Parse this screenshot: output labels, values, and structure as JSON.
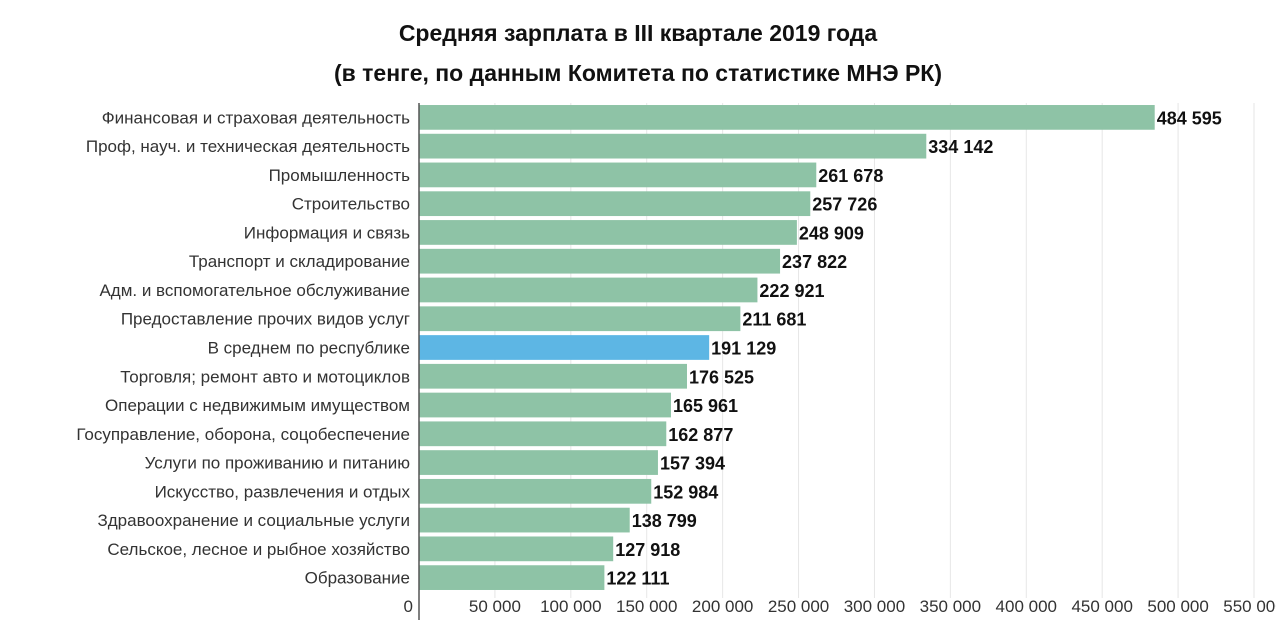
{
  "chart_data": {
    "type": "bar",
    "orientation": "horizontal",
    "title": "Средняя зарплата в III квартале 2019 года",
    "subtitle": "(в тенге, по данным Комитета по статистике МНЭ РК)",
    "categories": [
      "Финансовая и страховая деятельность",
      "Проф, науч. и техническая деятельность",
      "Промышленность",
      "Строительство",
      "Информация и связь",
      "Транспорт и складирование",
      "Адм. и вспомогательное обслуживание",
      "Предоставление прочих видов услуг",
      "В среднем по республике",
      "Торговля; ремонт авто и мотоциклов",
      "Операции с недвижимым имуществом",
      "Госуправление, оборона, соцобеспечение",
      "Услуги по проживанию и питанию",
      "Искусство, развлечения и отдых",
      "Здравоохранение и социальные услуги",
      "Сельское, лесное и рыбное хозяйство",
      "Образование"
    ],
    "values": [
      484595,
      334142,
      261678,
      257726,
      248909,
      237822,
      222921,
      211681,
      191129,
      176525,
      165961,
      162877,
      157394,
      152984,
      138799,
      127918,
      122111
    ],
    "value_labels": [
      "484 595",
      "334 142",
      "261 678",
      "257 726",
      "248 909",
      "237 822",
      "222 921",
      "211 681",
      "191 129",
      "176 525",
      "165 961",
      "162 877",
      "157 394",
      "152 984",
      "138 799",
      "127 918",
      "122 111"
    ],
    "highlight": "В среднем по республике",
    "xlim": [
      0,
      550000
    ],
    "ticks": [
      0,
      50000,
      100000,
      150000,
      200000,
      250000,
      300000,
      350000,
      400000,
      450000,
      500000,
      550000
    ],
    "tick_labels": [
      "0",
      "50 000",
      "100 000",
      "150 000",
      "200 000",
      "250 000",
      "300 000",
      "350 000",
      "400 000",
      "450 000",
      "500 000",
      "550 000"
    ],
    "grid": true,
    "colors": {
      "bar": "#8ec3a6",
      "highlight": "#5db6e4",
      "grid": "#e6e6e6",
      "axis": "#555555"
    }
  }
}
